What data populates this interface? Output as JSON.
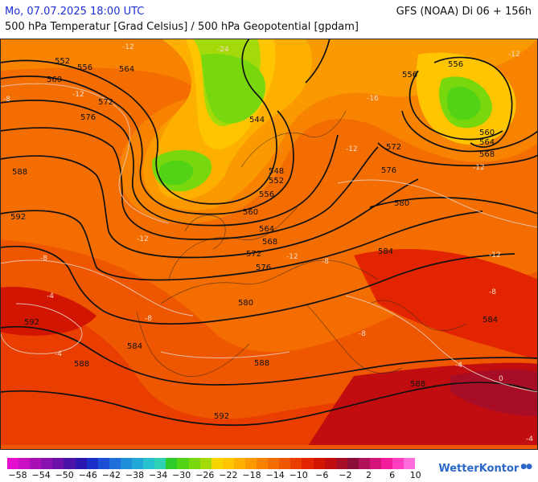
{
  "header": {
    "datetime": "Mo, 07.07.2025 18:00 UTC",
    "model": "GFS (NOAA) Di 06 + 156h",
    "title": "500 hPa Temperatur [Grad Celsius] / 500 hPa Geopotential [gpdam]"
  },
  "map": {
    "geopotential_labels": [
      "552",
      "556",
      "560",
      "564",
      "572",
      "576",
      "588",
      "592",
      "544",
      "548",
      "552",
      "556",
      "560",
      "564",
      "568",
      "572",
      "576",
      "580",
      "584",
      "588",
      "592",
      "556",
      "556",
      "560",
      "564",
      "568",
      "572",
      "576",
      "580",
      "584",
      "584",
      "588",
      "588",
      "592"
    ],
    "temperature_labels": [
      "-12",
      "-12",
      "-24",
      "-12",
      "-16",
      "-12",
      "-8",
      "-4",
      "-4",
      "-8",
      "-12",
      "-12",
      "-8",
      "-8",
      "-4",
      "0",
      "-4",
      "-12",
      "-8",
      "-8",
      "-12"
    ]
  },
  "legend": {
    "tick_labels": [
      "−58",
      "−54",
      "−50",
      "−46",
      "−42",
      "−38",
      "−34",
      "−30",
      "−26",
      "−22",
      "−18",
      "−14",
      "−10",
      "−6",
      "−2",
      "2",
      "6",
      "10"
    ],
    "colors": [
      "#e30ed0",
      "#c810c2",
      "#a80fb5",
      "#8a10b0",
      "#6c10a9",
      "#4a12a8",
      "#2b16b0",
      "#1a2ec8",
      "#1d4fd6",
      "#1e6fdc",
      "#1f8fdb",
      "#22a8d8",
      "#27c1cf",
      "#2ed1b3",
      "#2dcc28",
      "#52d315",
      "#79d70e",
      "#a5da0a",
      "#f7d500",
      "#fec500",
      "#fdb000",
      "#fb9a00",
      "#f88300",
      "#f46d00",
      "#ef5600",
      "#ea3e00",
      "#e22500",
      "#d21500",
      "#c10c10",
      "#a80d26",
      "#8a0d3a",
      "#b0125a",
      "#d3147a",
      "#f21c9d",
      "#ff3fc0",
      "#ff6ddc"
    ],
    "brand": "WetterKontor"
  }
}
